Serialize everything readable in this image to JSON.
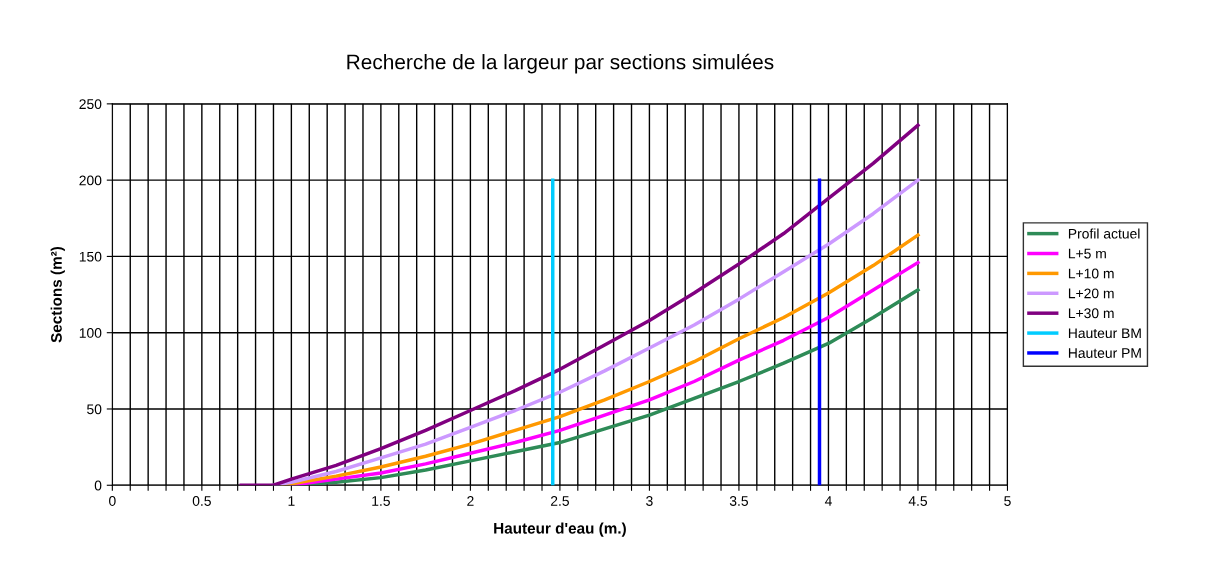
{
  "chart_data": {
    "type": "line",
    "title": "Recherche de la largeur par sections simulées",
    "xlabel": "Hauteur d'eau (m.)",
    "ylabel": "Sections (m²)",
    "xlim": [
      0,
      5
    ],
    "ylim": [
      0,
      250
    ],
    "xticks": [
      0,
      {
        "value": 0.1,
        "label": null
      },
      {
        "value": 0.2,
        "label": null
      },
      {
        "value": 0.3,
        "label": null
      },
      {
        "value": 0.4,
        "label": null
      },
      0.5,
      {
        "value": 0.6,
        "label": null
      },
      {
        "value": 0.7,
        "label": null
      },
      {
        "value": 0.8,
        "label": null
      },
      {
        "value": 0.9,
        "label": null
      },
      1,
      {
        "value": 1.1,
        "label": null
      },
      {
        "value": 1.2,
        "label": null
      },
      {
        "value": 1.3,
        "label": null
      },
      {
        "value": 1.4,
        "label": null
      },
      1.5,
      {
        "value": 1.6,
        "label": null
      },
      {
        "value": 1.7,
        "label": null
      },
      {
        "value": 1.8,
        "label": null
      },
      {
        "value": 1.9,
        "label": null
      },
      2,
      {
        "value": 2.1,
        "label": null
      },
      {
        "value": 2.2,
        "label": null
      },
      {
        "value": 2.3,
        "label": null
      },
      {
        "value": 2.4,
        "label": null
      },
      2.5,
      {
        "value": 2.6,
        "label": null
      },
      {
        "value": 2.7,
        "label": null
      },
      {
        "value": 2.8,
        "label": null
      },
      {
        "value": 2.9,
        "label": null
      },
      3,
      {
        "value": 3.1,
        "label": null
      },
      {
        "value": 3.2,
        "label": null
      },
      {
        "value": 3.3,
        "label": null
      },
      {
        "value": 3.4,
        "label": null
      },
      3.5,
      {
        "value": 3.6,
        "label": null
      },
      {
        "value": 3.7,
        "label": null
      },
      {
        "value": 3.8,
        "label": null
      },
      {
        "value": 3.9,
        "label": null
      },
      4,
      {
        "value": 4.1,
        "label": null
      },
      {
        "value": 4.2,
        "label": null
      },
      {
        "value": 4.3,
        "label": null
      },
      {
        "value": 4.4,
        "label": null
      },
      4.5,
      {
        "value": 4.6,
        "label": null
      },
      {
        "value": 4.7,
        "label": null
      },
      {
        "value": 4.8,
        "label": null
      },
      {
        "value": 4.9,
        "label": null
      },
      5
    ],
    "yticks": [
      0,
      50,
      100,
      150,
      200,
      250
    ],
    "grid": true,
    "legend": "right",
    "marker": "none",
    "line_style": "solid",
    "series": [
      {
        "name": "Profil actuel",
        "color": "#2e8b57",
        "x": [
          1,
          1.25,
          1.5,
          1.75,
          2,
          2.25,
          2.5,
          2.75,
          3,
          3.25,
          3.5,
          3.75,
          4,
          4.25,
          4.5
        ],
        "values": [
          0,
          2,
          5,
          10,
          16,
          22,
          28,
          37,
          46,
          57,
          68,
          80,
          93,
          110,
          128
        ]
      },
      {
        "name": "L+5 m",
        "color": "#ff00ff",
        "x": [
          1,
          1.25,
          1.5,
          1.75,
          2,
          2.25,
          2.5,
          2.75,
          3,
          3.25,
          3.5,
          3.75,
          4,
          4.25,
          4.5
        ],
        "values": [
          0,
          4,
          8,
          14,
          21,
          28,
          36,
          46,
          56,
          68,
          82,
          95,
          110,
          128,
          146
        ]
      },
      {
        "name": "L+10 m",
        "color": "#ff9900",
        "x": [
          0.95,
          1,
          1.25,
          1.5,
          1.75,
          2,
          2.25,
          2.5,
          2.75,
          3,
          3.25,
          3.5,
          3.75,
          4,
          4.25,
          4.5
        ],
        "values": [
          0,
          1,
          6,
          12,
          19,
          27,
          36,
          45,
          56,
          68,
          81,
          96,
          110,
          126,
          144,
          164
        ]
      },
      {
        "name": "L+20 m",
        "color": "#cc99ff",
        "x": [
          0.9,
          1,
          1.25,
          1.5,
          1.75,
          2,
          2.25,
          2.5,
          2.75,
          3,
          3.25,
          3.5,
          3.75,
          4,
          4.25,
          4.5
        ],
        "values": [
          0,
          2,
          9,
          18,
          27,
          38,
          49,
          61,
          75,
          90,
          105,
          122,
          140,
          158,
          178,
          200
        ]
      },
      {
        "name": "L+30 m",
        "color": "#800080",
        "x": [
          0.72,
          0.9,
          1,
          1.25,
          1.5,
          1.75,
          2,
          2.25,
          2.5,
          2.75,
          3,
          3.25,
          3.5,
          3.75,
          4,
          4.25,
          4.5
        ],
        "values": [
          0,
          0,
          4,
          13,
          24,
          36,
          49,
          62,
          76,
          92,
          108,
          126,
          145,
          165,
          188,
          211,
          236
        ]
      },
      {
        "name": "Hauteur BM",
        "color": "#00ccff",
        "x": [
          2.46,
          2.46
        ],
        "values": [
          0,
          200
        ]
      },
      {
        "name": "Hauteur PM",
        "color": "#0000ff",
        "x": [
          3.95,
          3.95
        ],
        "values": [
          0,
          200
        ]
      }
    ]
  }
}
